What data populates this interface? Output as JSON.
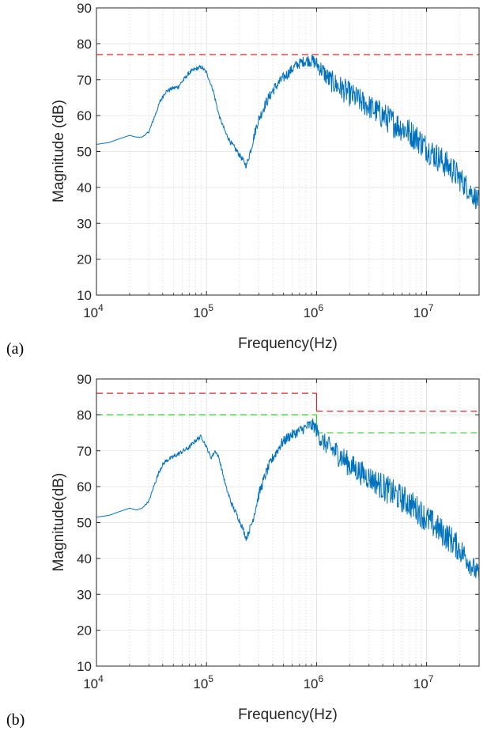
{
  "chart_data": [
    {
      "type": "line",
      "panel_label": "(a)",
      "xlabel": "Frequency(Hz)",
      "ylabel": "Magnitude (dB)",
      "xscale": "log",
      "xlim": [
        10000,
        30000000
      ],
      "ylim": [
        10,
        90
      ],
      "yticks": [
        10,
        20,
        30,
        40,
        50,
        60,
        70,
        80,
        90
      ],
      "xticks": [
        {
          "value": 10000,
          "base": "10",
          "exp": "4"
        },
        {
          "value": 100000,
          "base": "10",
          "exp": "5"
        },
        {
          "value": 1000000,
          "base": "10",
          "exp": "6"
        },
        {
          "value": 10000000,
          "base": "10",
          "exp": "7"
        }
      ],
      "grid": true,
      "series": [
        {
          "color": "#0072BD",
          "x": [
            10000,
            13000,
            16000,
            20000,
            23000,
            26000,
            30000,
            34000,
            38000,
            42000,
            48000,
            55000,
            62000,
            70000,
            80000,
            90000,
            100000,
            115000,
            130000,
            150000,
            170000,
            190000,
            210000,
            230000,
            250000,
            290000,
            340000,
            400000,
            480000,
            560000,
            650000,
            750000,
            850000,
            950000,
            1100000,
            1300000,
            1600000,
            2000000,
            2500000,
            3200000,
            4000000,
            5000000,
            6500000,
            8000000,
            10000000,
            13000000,
            17000000,
            22000000,
            30000000
          ],
          "y": [
            52,
            52.5,
            53.5,
            54.5,
            54,
            54,
            55.5,
            60,
            64,
            66.5,
            67.5,
            68,
            70,
            72,
            73,
            73.5,
            72,
            67,
            60,
            55,
            52,
            50,
            48,
            46,
            50,
            58,
            63,
            67,
            70,
            72,
            74,
            75,
            75.5,
            75,
            73,
            70,
            68,
            66,
            64,
            62,
            60,
            58,
            56,
            54,
            51,
            48,
            45,
            41,
            36
          ],
          "noise_amplitude": [
            0,
            0,
            0,
            0,
            0,
            0,
            0.3,
            0.5,
            0.6,
            0.6,
            0.6,
            0.6,
            0.6,
            0.6,
            0.6,
            0.6,
            0.5,
            0.5,
            0.5,
            0.6,
            0.8,
            0.8,
            0.8,
            0.8,
            1.2,
            1.5,
            1.5,
            1.5,
            1.5,
            1.5,
            1.5,
            1.5,
            1.8,
            2.0,
            2.5,
            3.0,
            3.5,
            3.5,
            3.5,
            3.5,
            4.0,
            4.0,
            4.0,
            4.0,
            4.0,
            4.0,
            4.0,
            3.5,
            3.0
          ]
        }
      ],
      "limits": [
        {
          "color": "#D62728",
          "dash": true,
          "segments": [
            {
              "x": [
                10000,
                30000000
              ],
              "y": 77
            }
          ]
        }
      ]
    },
    {
      "type": "line",
      "panel_label": "(b)",
      "xlabel": "Frequency(Hz)",
      "ylabel": "Magnitude(dB)",
      "xscale": "log",
      "xlim": [
        10000,
        30000000
      ],
      "ylim": [
        10,
        90
      ],
      "yticks": [
        10,
        20,
        30,
        40,
        50,
        60,
        70,
        80,
        90
      ],
      "xticks": [
        {
          "value": 10000,
          "base": "10",
          "exp": "4"
        },
        {
          "value": 100000,
          "base": "10",
          "exp": "5"
        },
        {
          "value": 1000000,
          "base": "10",
          "exp": "6"
        },
        {
          "value": 10000000,
          "base": "10",
          "exp": "7"
        }
      ],
      "grid": true,
      "series": [
        {
          "color": "#0072BD",
          "x": [
            10000,
            13000,
            16000,
            20000,
            23000,
            26000,
            30000,
            34000,
            38000,
            42000,
            48000,
            55000,
            62000,
            70000,
            80000,
            90000,
            100000,
            110000,
            120000,
            130000,
            150000,
            170000,
            190000,
            210000,
            230000,
            260000,
            300000,
            350000,
            400000,
            480000,
            560000,
            650000,
            750000,
            850000,
            950000,
            1100000,
            1300000,
            1600000,
            2000000,
            2500000,
            3200000,
            4000000,
            5000000,
            6500000,
            8000000,
            10000000,
            13000000,
            17000000,
            22000000,
            30000000
          ],
          "y": [
            51.5,
            52,
            53,
            54,
            53.5,
            54,
            56,
            61,
            65,
            67,
            68,
            69,
            70,
            71,
            73,
            74,
            71,
            68,
            70,
            68,
            60,
            55,
            52,
            49,
            45.5,
            50,
            58,
            64,
            68,
            72,
            74,
            75,
            76,
            77,
            77,
            73,
            71,
            69,
            66,
            64,
            62,
            60,
            58,
            56,
            54,
            51,
            48,
            45,
            41,
            35
          ],
          "noise_amplitude": [
            0,
            0,
            0,
            0,
            0,
            0,
            0.3,
            0.5,
            0.6,
            0.6,
            0.6,
            0.6,
            0.6,
            0.6,
            0.6,
            0.6,
            0.5,
            0.5,
            0.5,
            0.5,
            0.6,
            0.8,
            0.8,
            0.8,
            0.8,
            1.2,
            1.5,
            1.5,
            1.5,
            1.5,
            1.5,
            1.5,
            1.5,
            1.8,
            2.0,
            2.5,
            3.0,
            3.5,
            3.5,
            3.5,
            3.5,
            4.0,
            4.0,
            4.0,
            4.0,
            4.0,
            4.0,
            4.0,
            3.5,
            3.0
          ]
        }
      ],
      "limits": [
        {
          "color": "#D62728",
          "dash": true,
          "segments": [
            {
              "x": [
                10000,
                1000000
              ],
              "y": 86
            },
            {
              "x": [
                1000000,
                30000000
              ],
              "y": 81
            }
          ]
        },
        {
          "color": "#33CC33",
          "dash": true,
          "segments": [
            {
              "x": [
                10000,
                1000000
              ],
              "y": 80
            },
            {
              "x": [
                1000000,
                30000000
              ],
              "y": 75
            }
          ]
        }
      ]
    }
  ]
}
